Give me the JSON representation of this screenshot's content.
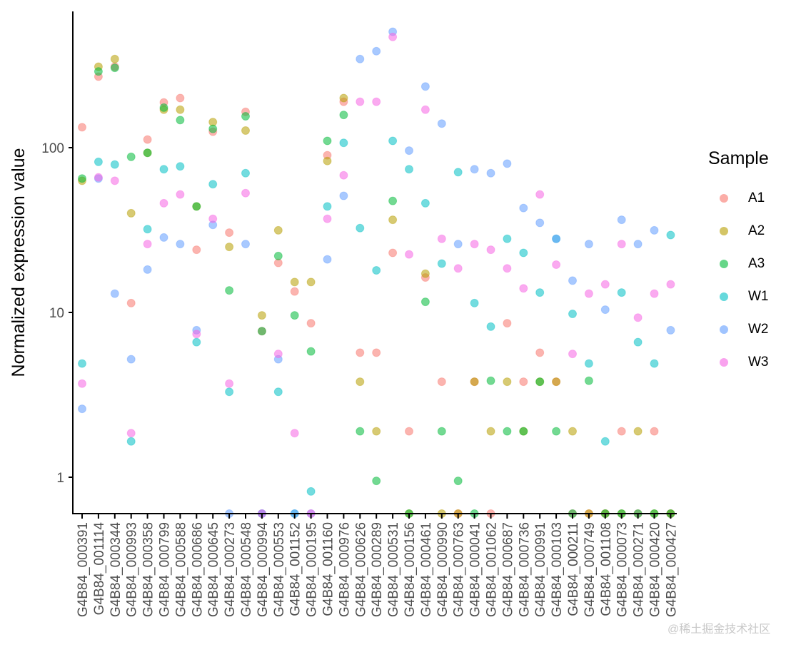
{
  "chart_data": {
    "type": "scatter",
    "title": "",
    "xlabel": "",
    "ylabel": "Normalized expression value",
    "yscale": "log10",
    "ylim": [
      0.6,
      600
    ],
    "yticks": [
      1,
      10,
      100
    ],
    "ytick_labels": [
      "1",
      "10",
      "100"
    ],
    "grid": false,
    "legend_position": "right",
    "legend_title": "Sample",
    "categories": [
      "G4B84_000391",
      "G4B84_001114",
      "G4B84_000344",
      "G4B84_000993",
      "G4B84_000358",
      "G4B84_000799",
      "G4B84_000588",
      "G4B84_000686",
      "G4B84_000645",
      "G4B84_000273",
      "G4B84_000548",
      "G4B84_000994",
      "G4B84_000553",
      "G4B84_001152",
      "G4B84_000195",
      "G4B84_001160",
      "G4B84_000976",
      "G4B84_000626",
      "G4B84_000289",
      "G4B84_000531",
      "G4B84_000156",
      "G4B84_000461",
      "G4B84_000990",
      "G4B84_000763",
      "G4B84_000041",
      "G4B84_001062",
      "G4B84_000687",
      "G4B84_000736",
      "G4B84_000991",
      "G4B84_000103",
      "G4B84_000211",
      "G4B84_000749",
      "G4B84_001108",
      "G4B84_000073",
      "G4B84_000271",
      "G4B84_000420",
      "G4B84_000427"
    ],
    "series": [
      {
        "name": "A1",
        "color": "#F8766D",
        "values": [
          133,
          270,
          310,
          11.4,
          112,
          188,
          200,
          24,
          125,
          30.5,
          165,
          7.7,
          20,
          13.4,
          8.6,
          90,
          190,
          5.7,
          5.7,
          23,
          1.9,
          16.3,
          3.8,
          0.6,
          3.8,
          0.6,
          8.6,
          3.8,
          5.7,
          3.8,
          0.6,
          0.6,
          0.6,
          1.9,
          0.6,
          1.9,
          0.6
        ]
      },
      {
        "name": "A2",
        "color": "#B79F00",
        "values": [
          63,
          310,
          345,
          40,
          93,
          170,
          170,
          44,
          143,
          25,
          127,
          9.6,
          31.5,
          15.3,
          15.3,
          83,
          200,
          3.8,
          1.9,
          36.5,
          0.6,
          17.2,
          0.6,
          0.6,
          3.8,
          1.9,
          3.8,
          1.9,
          3.8,
          3.8,
          1.9,
          0.6,
          0.6,
          0.6,
          1.9,
          0.6,
          0.6
        ]
      },
      {
        "name": "A3",
        "color": "#00BA38",
        "values": [
          65,
          290,
          305,
          88,
          93,
          175,
          147,
          44,
          130,
          13.6,
          155,
          7.7,
          22,
          9.6,
          5.8,
          110,
          158,
          1.9,
          0.95,
          47.5,
          0.6,
          11.6,
          1.9,
          0.95,
          0.6,
          3.85,
          1.9,
          1.9,
          3.8,
          1.9,
          0.6,
          3.85,
          0.6,
          0.6,
          0.6,
          0.6,
          0.6
        ]
      },
      {
        "name": "W1",
        "color": "#00BFC4",
        "values": [
          4.9,
          82,
          79,
          1.65,
          32,
          74,
          77,
          6.6,
          60,
          3.3,
          70,
          0.6,
          3.3,
          0.6,
          0.82,
          44,
          107,
          32.5,
          18,
          110,
          74,
          46,
          19.8,
          71,
          11.4,
          8.2,
          28,
          23,
          13.2,
          28,
          9.8,
          4.9,
          1.65,
          13.2,
          6.6,
          4.9,
          29.5
        ]
      },
      {
        "name": "W2",
        "color": "#619CFF",
        "values": [
          2.6,
          65,
          13,
          5.2,
          18.2,
          28.5,
          26,
          7.8,
          34,
          0.6,
          26,
          0.6,
          5.2,
          0.6,
          0.6,
          21,
          51,
          345,
          385,
          505,
          96,
          235,
          140,
          26,
          74,
          70,
          80,
          43,
          35,
          28,
          15.6,
          26,
          10.4,
          36.5,
          26,
          31.5,
          7.8
        ]
      },
      {
        "name": "W3",
        "color": "#F564E3",
        "values": [
          3.7,
          66,
          63,
          1.85,
          26,
          46,
          52,
          7.4,
          37,
          3.7,
          53,
          0.6,
          5.6,
          1.85,
          0.6,
          37,
          68,
          190,
          190,
          470,
          22.5,
          170,
          28,
          18.5,
          26,
          24,
          18.5,
          14,
          52,
          19.5,
          5.6,
          13,
          14.8,
          26,
          9.3,
          13,
          14.8
        ]
      }
    ]
  },
  "legend": {
    "title": "Sample",
    "items": [
      {
        "label": "A1",
        "color": "#F8766D"
      },
      {
        "label": "A2",
        "color": "#B79F00"
      },
      {
        "label": "A3",
        "color": "#00BA38"
      },
      {
        "label": "W1",
        "color": "#00BFC4"
      },
      {
        "label": "W2",
        "color": "#619CFF"
      },
      {
        "label": "W3",
        "color": "#F564E3"
      }
    ]
  },
  "watermark": "@稀土掘金技术社区"
}
